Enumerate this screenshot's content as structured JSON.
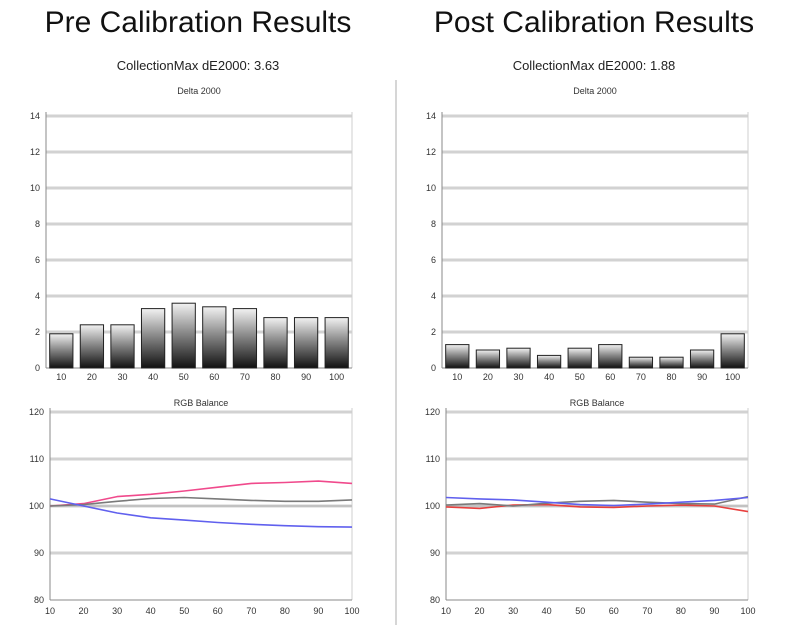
{
  "panels": {
    "pre": {
      "title": "Pre Calibration Results",
      "subtitle": "CollectionMax dE2000: 3.63"
    },
    "post": {
      "title": "Post Calibration Results",
      "subtitle": "CollectionMax dE2000: 1.88"
    }
  },
  "chart_data": [
    {
      "id": "pre-de",
      "type": "bar",
      "title": "Delta 2000",
      "categories": [
        "10",
        "20",
        "30",
        "40",
        "50",
        "60",
        "70",
        "80",
        "90",
        "100"
      ],
      "values": [
        1.9,
        2.4,
        2.4,
        3.3,
        3.6,
        3.4,
        3.3,
        2.8,
        2.8,
        2.8
      ],
      "yticks": [
        0,
        2,
        4,
        6,
        8,
        10,
        12,
        14
      ],
      "ylim": [
        0,
        14
      ],
      "grid": true
    },
    {
      "id": "pre-rgb",
      "type": "line",
      "title": "RGB Balance",
      "x": [
        10,
        20,
        30,
        40,
        50,
        60,
        70,
        80,
        90,
        100
      ],
      "xlim": [
        10,
        100
      ],
      "yticks": [
        80,
        90,
        100,
        110,
        120
      ],
      "ylim": [
        80,
        120
      ],
      "grid": true,
      "series": [
        {
          "color": "#f04a8c",
          "values": [
            100,
            100.5,
            102,
            102.5,
            103.2,
            104.0,
            104.8,
            105.0,
            105.3,
            104.8
          ]
        },
        {
          "color": "#7a7a7a",
          "values": [
            100,
            100.3,
            101,
            101.6,
            101.8,
            101.5,
            101.2,
            101.0,
            101.0,
            101.3
          ]
        },
        {
          "color": "#6060ee",
          "values": [
            101.5,
            100,
            98.5,
            97.5,
            97.0,
            96.5,
            96.1,
            95.8,
            95.6,
            95.5
          ]
        }
      ]
    },
    {
      "id": "post-de",
      "type": "bar",
      "title": "Delta 2000",
      "categories": [
        "10",
        "20",
        "30",
        "40",
        "50",
        "60",
        "70",
        "80",
        "90",
        "100"
      ],
      "values": [
        1.3,
        1.0,
        1.1,
        0.7,
        1.1,
        1.3,
        0.6,
        0.6,
        1.0,
        1.9
      ],
      "yticks": [
        0,
        2,
        4,
        6,
        8,
        10,
        12,
        14
      ],
      "ylim": [
        0,
        14
      ],
      "grid": true
    },
    {
      "id": "post-rgb",
      "type": "line",
      "title": "RGB Balance",
      "x": [
        10,
        20,
        30,
        40,
        50,
        60,
        70,
        80,
        90,
        100
      ],
      "xlim": [
        10,
        100
      ],
      "yticks": [
        80,
        90,
        100,
        110,
        120
      ],
      "ylim": [
        80,
        120
      ],
      "grid": true,
      "series": [
        {
          "color": "#e8403e",
          "values": [
            99.8,
            99.5,
            100.2,
            100.3,
            99.8,
            99.7,
            100.0,
            100.2,
            100.0,
            98.8
          ]
        },
        {
          "color": "#7a7a7a",
          "values": [
            100.2,
            100.5,
            100.0,
            100.6,
            101.0,
            101.2,
            100.8,
            100.5,
            100.4,
            102.0
          ]
        },
        {
          "color": "#6060ee",
          "values": [
            101.8,
            101.5,
            101.3,
            100.8,
            100.3,
            100.1,
            100.4,
            100.8,
            101.2,
            101.8
          ]
        }
      ]
    }
  ]
}
